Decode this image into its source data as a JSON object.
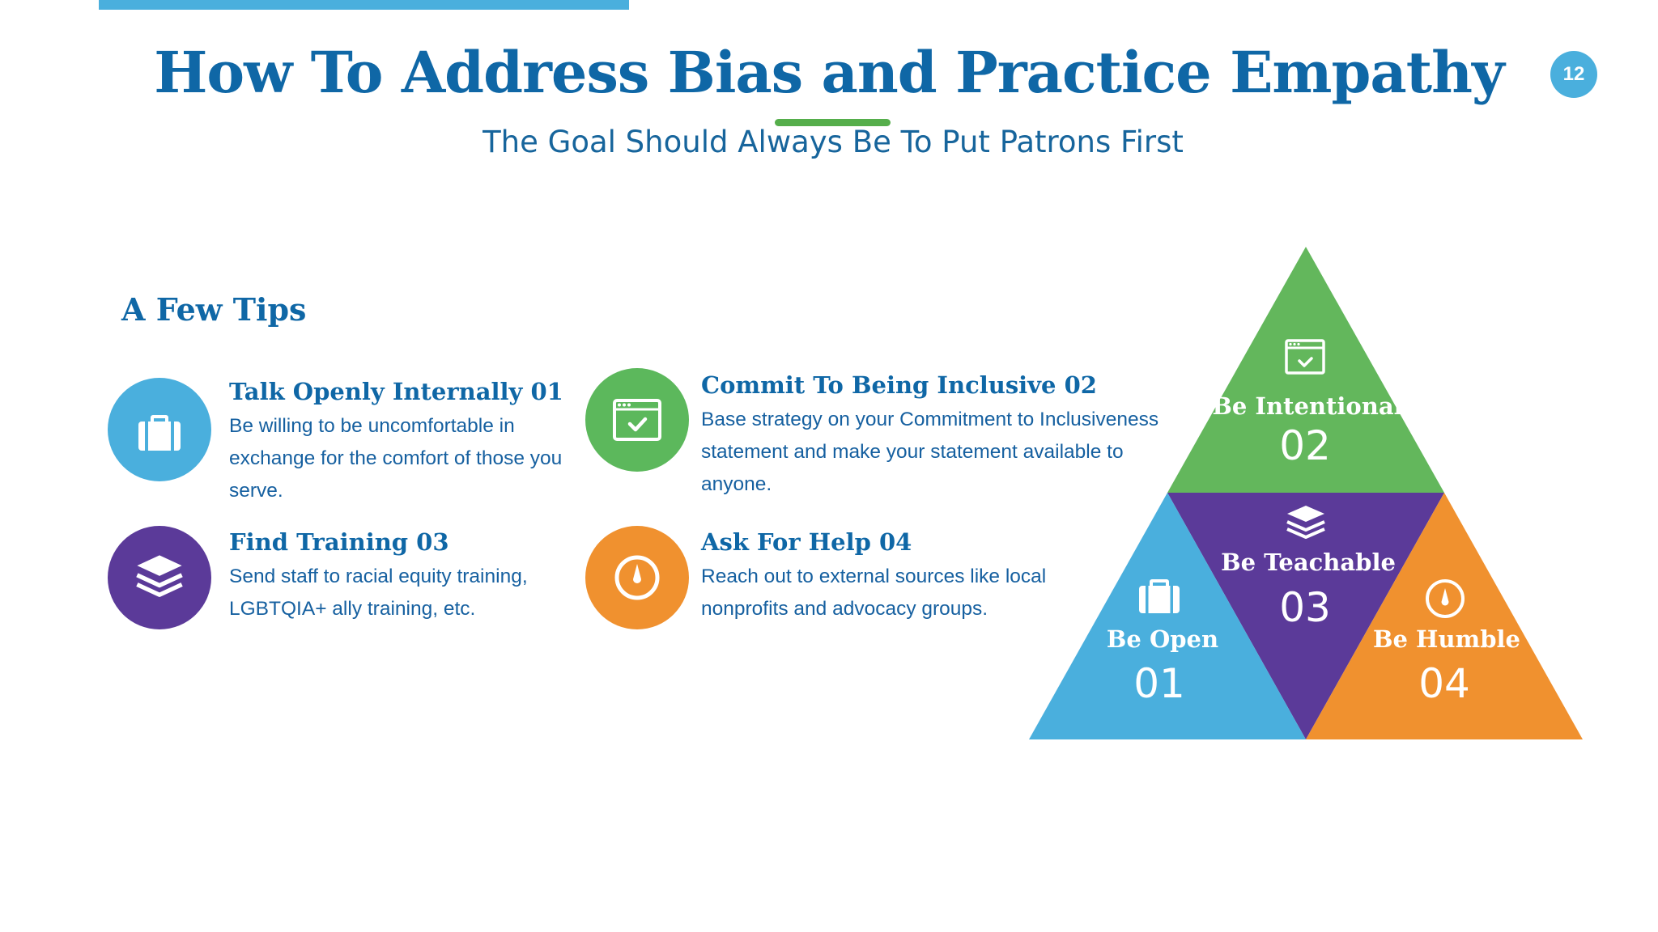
{
  "slide": {
    "title": "How To Address Bias and Practice Empathy",
    "subtitle": "The Goal Should Always Be To Put Patrons First",
    "page_number": "12"
  },
  "tips": {
    "heading": "A Few Tips",
    "items": [
      {
        "title": "Talk Openly Internally 01",
        "body": "Be willing to be uncomfortable in exchange for the comfort of those you serve.",
        "icon": "briefcase-icon",
        "color": "#4AAFDD"
      },
      {
        "title": "Commit To Being Inclusive 02",
        "body": "Base strategy on your Commitment to Inclusiveness statement and make your statement available to anyone.",
        "icon": "browser-check-icon",
        "color": "#5CB85C"
      },
      {
        "title": "Find Training 03",
        "body": "Send staff to racial equity training, LGBTQIA+ ally training, etc.",
        "icon": "layers-icon",
        "color": "#5B3A99"
      },
      {
        "title": "Ask For Help 04",
        "body": "Reach out to external sources like local nonprofits and advocacy groups.",
        "icon": "compass-icon",
        "color": "#F0912F"
      }
    ]
  },
  "pyramid": {
    "segments": [
      {
        "label": "Be Intentional",
        "number": "02",
        "color": "#63B75C",
        "icon": "browser-check-icon"
      },
      {
        "label": "Be Teachable",
        "number": "03",
        "color": "#5B3A99",
        "icon": "layers-icon"
      },
      {
        "label": "Be Open",
        "number": "01",
        "color": "#4AAFDD",
        "icon": "briefcase-icon"
      },
      {
        "label": "Be Humble",
        "number": "04",
        "color": "#F0912F",
        "icon": "compass-icon"
      }
    ]
  }
}
